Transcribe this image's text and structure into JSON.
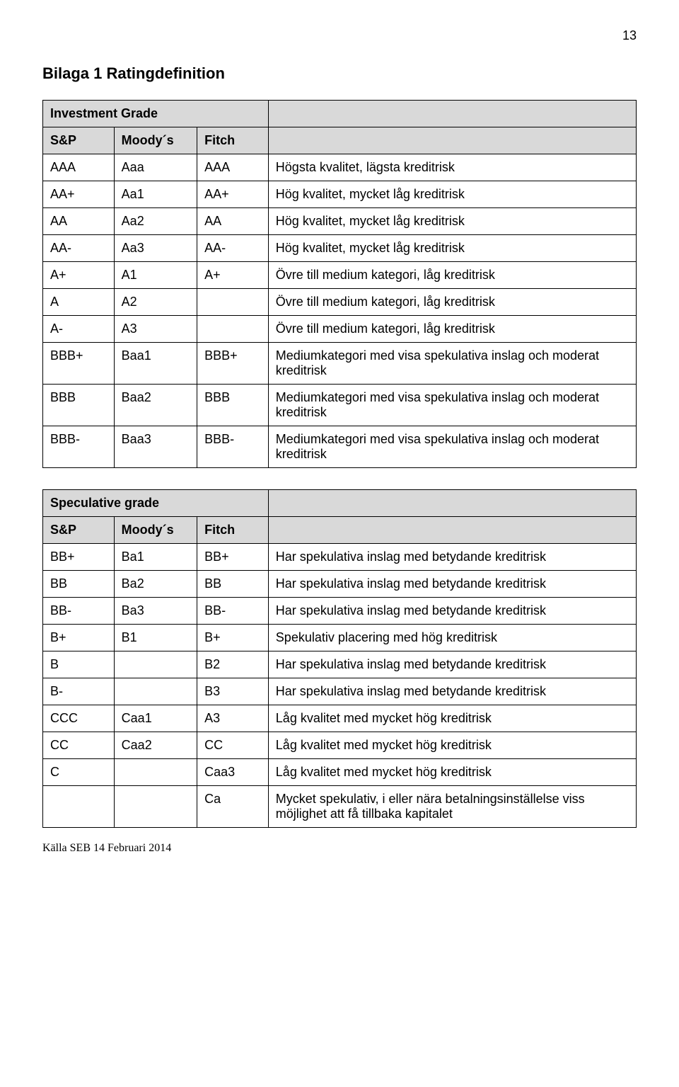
{
  "page_number": "13",
  "title": "Bilaga 1 Ratingdefinition",
  "table1": {
    "section": "Investment Grade",
    "headers": [
      "S&P",
      "Moody´s",
      "Fitch",
      ""
    ],
    "rows": [
      [
        "AAA",
        "Aaa",
        "AAA",
        "Högsta kvalitet, lägsta kreditrisk"
      ],
      [
        "AA+",
        "Aa1",
        "AA+",
        "Hög kvalitet, mycket låg kreditrisk"
      ],
      [
        "AA",
        "Aa2",
        "AA",
        "Hög kvalitet, mycket låg kreditrisk"
      ],
      [
        "AA-",
        "Aa3",
        "AA-",
        "Hög kvalitet, mycket låg kreditrisk"
      ],
      [
        "A+",
        "A1",
        "A+",
        "Övre till medium kategori, låg kreditrisk"
      ],
      [
        "A",
        "A2",
        "",
        "Övre till medium kategori, låg kreditrisk"
      ],
      [
        "A-",
        "A3",
        "",
        "Övre till medium kategori, låg kreditrisk"
      ],
      [
        "BBB+",
        "Baa1",
        "BBB+",
        "Mediumkategori med visa spekulativa inslag och moderat kreditrisk"
      ],
      [
        "BBB",
        "Baa2",
        "BBB",
        "Mediumkategori med visa spekulativa inslag och moderat kreditrisk"
      ],
      [
        "BBB-",
        "Baa3",
        "BBB-",
        "Mediumkategori med visa spekulativa inslag och moderat kreditrisk"
      ]
    ]
  },
  "table2": {
    "section": "Speculative grade",
    "headers": [
      "S&P",
      "Moody´s",
      "Fitch",
      ""
    ],
    "rows": [
      [
        "BB+",
        "Ba1",
        "BB+",
        "Har spekulativa inslag med betydande kreditrisk"
      ],
      [
        "BB",
        "Ba2",
        "BB",
        "Har spekulativa inslag med betydande kreditrisk"
      ],
      [
        "BB-",
        "Ba3",
        "BB-",
        "Har spekulativa inslag med betydande kreditrisk"
      ],
      [
        "B+",
        "B1",
        "B+",
        "Spekulativ placering med hög kreditrisk"
      ],
      [
        "B",
        "",
        "B2",
        "Har spekulativa inslag med betydande kreditrisk"
      ],
      [
        "B-",
        "",
        "B3",
        "Har spekulativa inslag med betydande kreditrisk"
      ],
      [
        "CCC",
        "Caa1",
        "A3",
        "Låg kvalitet med mycket hög kreditrisk"
      ],
      [
        "CC",
        "Caa2",
        "CC",
        "Låg kvalitet med mycket hög kreditrisk"
      ],
      [
        "C",
        "",
        "Caa3",
        "Låg kvalitet med mycket hög kreditrisk"
      ],
      [
        "",
        "",
        "Ca",
        "Mycket spekulativ, i eller nära betalningsinställelse viss möjlighet att få tillbaka kapitalet"
      ]
    ]
  },
  "source": "Källa SEB 14 Februari 2014"
}
